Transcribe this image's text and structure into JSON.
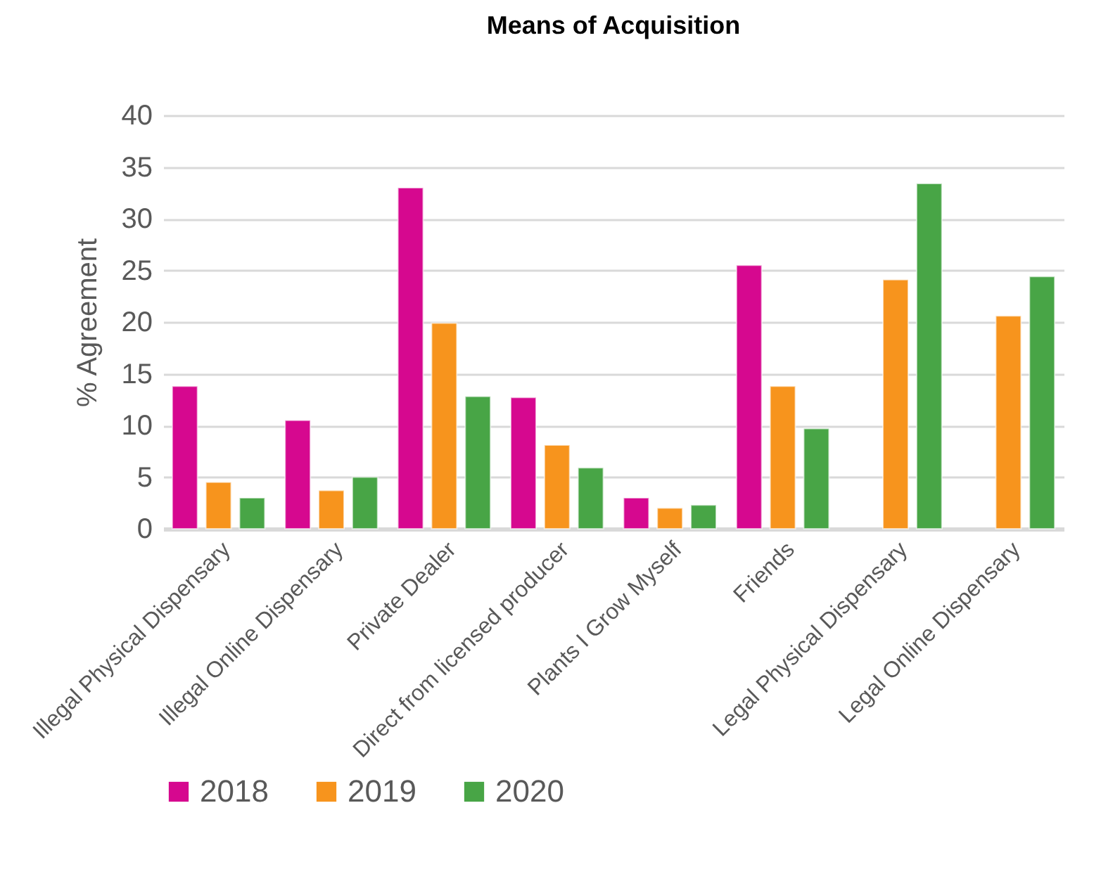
{
  "chart_data": {
    "type": "bar",
    "title": "Means of Acquisition",
    "ylabel": "% Agreement",
    "categories": [
      "Illegal Physical Dispensary",
      "Illegal Online Dispensary",
      "Private Dealer",
      "Direct from licensed producer",
      "Plants I Grow Myself",
      "Friends",
      "Legal Physical Dispensary",
      "Legal Online Dispensary"
    ],
    "series": [
      {
        "name": "2018",
        "color": "#d6088f",
        "values": [
          13.8,
          10.5,
          33.0,
          12.7,
          3.0,
          25.5,
          null,
          null
        ]
      },
      {
        "name": "2019",
        "color": "#f7941d",
        "values": [
          4.5,
          3.7,
          19.9,
          8.1,
          2.0,
          13.8,
          24.1,
          20.6
        ]
      },
      {
        "name": "2020",
        "color": "#48a546",
        "values": [
          3.0,
          5.0,
          12.8,
          5.9,
          2.3,
          9.7,
          33.4,
          24.4
        ]
      }
    ],
    "ylim": [
      0,
      40
    ],
    "yticks": [
      0,
      5,
      10,
      15,
      20,
      25,
      30,
      35,
      40
    ],
    "grid": "y",
    "legend": "bottom"
  }
}
